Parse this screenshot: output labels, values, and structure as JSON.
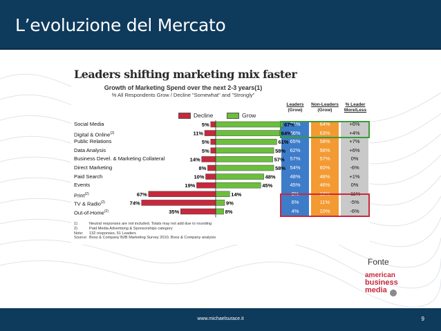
{
  "slide": {
    "title": "L’evoluzione del Mercato",
    "footer_url": "www.michaelsurace.it",
    "page_number": "9",
    "source_label": "Fonte",
    "logo_lines": [
      "american",
      "business",
      "media"
    ]
  },
  "colors": {
    "header_bg": "#0e3a5c",
    "decline": "#c8283c",
    "grow": "#6bbf3c",
    "leaders_col": "#3d7cc9",
    "non_leaders_col": "#f39a32",
    "diff_col": "#c9c9c9"
  },
  "chart_data": {
    "type": "bar",
    "title": "Leaders shifting marketing mix faster",
    "subtitle": "Growth of Marketing Spend over the next 2-3 years(1)",
    "subtitle2": "% All Respondents Grow / Decline \"Somewhat\" and \"Strongly\"",
    "legend": [
      {
        "name": "Decline",
        "color": "#c8283c"
      },
      {
        "name": "Grow",
        "color": "#6bbf3c"
      }
    ],
    "categories": [
      {
        "label": "Social Media",
        "sup": ""
      },
      {
        "label": "Digital & Online",
        "sup": "(2)"
      },
      {
        "label": "Public Relations",
        "sup": ""
      },
      {
        "label": "Data Analysis",
        "sup": ""
      },
      {
        "label": "Business Devel. & Marketing Collateral",
        "sup": ""
      },
      {
        "label": "Direct Marketing",
        "sup": ""
      },
      {
        "label": "Paid Search",
        "sup": ""
      },
      {
        "label": "Events",
        "sup": ""
      },
      {
        "label": "Print",
        "sup": "(2)"
      },
      {
        "label": "TV & Radio",
        "sup": "(2)"
      },
      {
        "label": "Out-of-Home",
        "sup": "(2)"
      }
    ],
    "series": [
      {
        "name": "Decline",
        "values": [
          5,
          11,
          5,
          5,
          14,
          8,
          10,
          19,
          67,
          74,
          35
        ]
      },
      {
        "name": "Grow",
        "values": [
          67,
          64,
          61,
          58,
          57,
          58,
          48,
          45,
          14,
          9,
          8
        ]
      }
    ],
    "table": {
      "headers": [
        {
          "text": "Leaders",
          "sub": "(Grow)"
        },
        {
          "text": "Non-Leaders",
          "sub": "(Grow)"
        },
        {
          "text": "% Leader More/Less",
          "sub": ""
        }
      ],
      "leaders": [
        "71%",
        "66%",
        "65%",
        "62%",
        "57%",
        "54%",
        "48%",
        "45%",
        "8%",
        "6%",
        "4%"
      ],
      "non_leaders": [
        "64%",
        "63%",
        "58%",
        "56%",
        "57%",
        "60%",
        "48%",
        "46%",
        "19%",
        "11%",
        "10%"
      ],
      "diff": [
        "+6%",
        "+4%",
        "+7%",
        "+6%",
        "0%",
        "-6%",
        "+1%",
        "0%",
        "-11%",
        "-5%",
        "-6%"
      ]
    },
    "notes": [
      {
        "n": "1)",
        "text": "Neutral responses are not included. Totals may not add due to rounding"
      },
      {
        "n": "2)",
        "text": "Paid Media Advertising & Sponsorships category"
      },
      {
        "n": "Note:",
        "text": "132 responses, 51 Leaders"
      },
      {
        "n": "Source:",
        "text": "Booz & Company B2B Marketing Survey 2010, Booz & Company analysis"
      }
    ]
  }
}
